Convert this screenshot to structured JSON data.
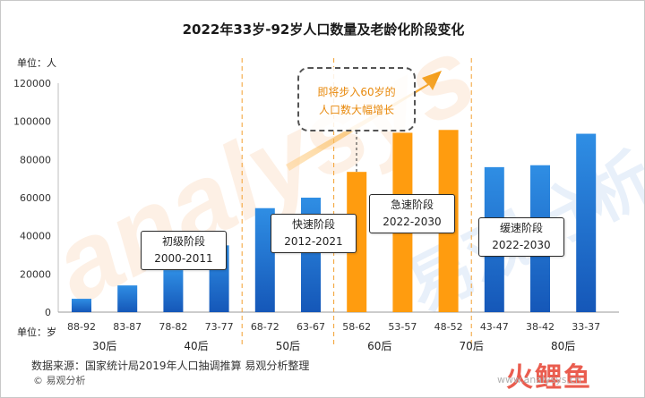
{
  "chart_data": {
    "type": "bar",
    "title": "2022年33岁-92岁人口数量及老龄化阶段变化",
    "y_unit_label": "单位：人",
    "x_unit_label": "单位：岁",
    "ylim": [
      0,
      120000
    ],
    "yticks": [
      0,
      20000,
      40000,
      60000,
      80000,
      100000,
      120000
    ],
    "grid": false,
    "categories": [
      "88-92",
      "83-87",
      "78-82",
      "73-77",
      "68-72",
      "63-67",
      "58-62",
      "53-57",
      "48-52",
      "43-47",
      "38-42",
      "33-37"
    ],
    "values": [
      7000,
      14000,
      22000,
      35000,
      54500,
      60000,
      73500,
      94000,
      95500,
      76000,
      77000,
      93500
    ],
    "highlight_categories": [
      "58-62",
      "53-57",
      "48-52"
    ],
    "generations": [
      {
        "label": "30后",
        "from": 0,
        "to": 1
      },
      {
        "label": "40后",
        "from": 2,
        "to": 3
      },
      {
        "label": "50后",
        "from": 4,
        "to": 5
      },
      {
        "label": "60后",
        "from": 6,
        "to": 7
      },
      {
        "label": "70后",
        "from": 8,
        "to": 9
      },
      {
        "label": "80后",
        "from": 10,
        "to": 11
      }
    ],
    "stages": [
      {
        "line1": "初级阶段",
        "line2": "2000-2011"
      },
      {
        "line1": "快速阶段",
        "line2": "2012-2021"
      },
      {
        "line1": "急速阶段",
        "line2": "2022-2030"
      },
      {
        "line1": "缓速阶段",
        "line2": "2022-2030"
      }
    ],
    "annotation": {
      "line1": "即将步入60岁的",
      "line2": "人口数大幅增长"
    }
  },
  "colors": {
    "bar_blue_top": "#2f8ee4",
    "bar_blue_bottom": "#1557b8",
    "bar_orange": "#ff9c0f",
    "divider": "#f3a030",
    "title": "#1a1a1a"
  },
  "watermark": {
    "text": "analysys",
    "text2": "易观分析"
  },
  "footer": {
    "source": "数据来源：国家统计局2019年人口抽调推算 易观分析整理",
    "brand": "© 易观分析",
    "site": "www.analysys.cn",
    "logo": "火鲤鱼"
  }
}
